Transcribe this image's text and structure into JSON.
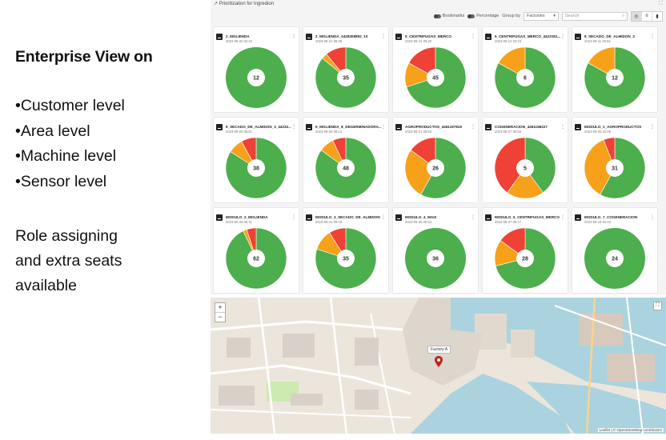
{
  "slide": {
    "heading": "Enterprise View on",
    "levels": [
      "Customer level",
      "Area level",
      "Machine level",
      "Sensor level"
    ],
    "role_lines": [
      "Role assigning",
      "and extra seats",
      "available"
    ]
  },
  "dashboard": {
    "title": "Prioritization for Ingredion",
    "toolbar": {
      "bookmarks_label": "Bookmarks",
      "percentage_label": "Percentage",
      "group_by_label": "Group by",
      "group_by_value": "Factories",
      "search_placeholder": "Search"
    },
    "colors": {
      "green": "#4cae4c",
      "orange": "#f7a11a",
      "red": "#ef4136"
    },
    "cards": [
      {
        "name": "2_MOLIENDA",
        "date": "2023-09-25 02:32",
        "total": "12",
        "slices": {
          "green": 1.0,
          "orange": 0,
          "red": 0
        }
      },
      {
        "name": "2_MOLIENDA_4428308892_10",
        "date": "2023-09-21 06:35",
        "total": "35",
        "slices": {
          "green": 0.86,
          "orange": 0.03,
          "red": 0.11
        }
      },
      {
        "name": "5_CENTRIFUGAS_MERCO",
        "date": "2023-09-21 00:20",
        "total": "45",
        "slices": {
          "green": 0.7,
          "orange": 0.13,
          "red": 0.17
        }
      },
      {
        "name": "5_CENTRIFUGAS_MERCO_4423181...",
        "date": "2023-09-13 03:23",
        "total": "6",
        "slices": {
          "green": 0.83,
          "orange": 0.17,
          "red": 0
        }
      },
      {
        "name": "8_SECADO_DE_ALMIDON_3",
        "date": "2023-09-11 05:54",
        "total": "12",
        "slices": {
          "green": 0.83,
          "orange": 0.17,
          "red": 0
        }
      },
      {
        "name": "8_SECADO_DE_ALMIDON_3_44232...",
        "date": "2023-09-26 08:51",
        "total": "38",
        "slices": {
          "green": 0.84,
          "orange": 0.08,
          "red": 0.08
        }
      },
      {
        "name": "9_MOLIENDA_8_DEGERMINADORA...",
        "date": "2023-09-26 08:13",
        "total": "48",
        "slices": {
          "green": 0.85,
          "orange": 0.08,
          "red": 0.07
        }
      },
      {
        "name": "AGROPRODUCTOS_4461197819",
        "date": "2023-09-21 05:50",
        "total": "26",
        "slices": {
          "green": 0.58,
          "orange": 0.27,
          "red": 0.15
        }
      },
      {
        "name": "COGENERACION_4461198227",
        "date": "2023-09-27 05:54",
        "total": "5",
        "slices": {
          "green": 0.4,
          "orange": 0.2,
          "red": 0.4
        }
      },
      {
        "name": "MODULO_1_AGROPRODUCTOS",
        "date": "2023-09-25 22:09",
        "total": "31",
        "slices": {
          "green": 0.58,
          "orange": 0.36,
          "red": 0.06
        }
      },
      {
        "name": "MODULO_2_MOLIENDA",
        "date": "2023-09-26 06:11",
        "total": "62",
        "slices": {
          "green": 0.93,
          "orange": 0.02,
          "red": 0.05
        }
      },
      {
        "name": "MODULO_3_SECADO_DE_ALMIDON",
        "date": "2023-09-21 06:18",
        "total": "35",
        "slices": {
          "green": 0.8,
          "orange": 0.11,
          "red": 0.09
        }
      },
      {
        "name": "MODULO_4_MAIZ",
        "date": "2023-09-20 00:54",
        "total": "36",
        "slices": {
          "green": 1.0,
          "orange": 0,
          "red": 0
        }
      },
      {
        "name": "MODULO_5_CENTRIFUGAS_MERCO",
        "date": "2023-09-27 06:17",
        "total": "28",
        "slices": {
          "green": 0.71,
          "orange": 0.14,
          "red": 0.15
        }
      },
      {
        "name": "MODULO_7_COGENERACION",
        "date": "2023-09-19 04:22",
        "total": "24",
        "slices": {
          "green": 1.0,
          "orange": 0,
          "red": 0
        }
      }
    ]
  },
  "map": {
    "zoom_in": "+",
    "zoom_out": "−",
    "marker_label": "Factory A",
    "attribution": "Leaflet | © OpenStreetMap contributors"
  }
}
